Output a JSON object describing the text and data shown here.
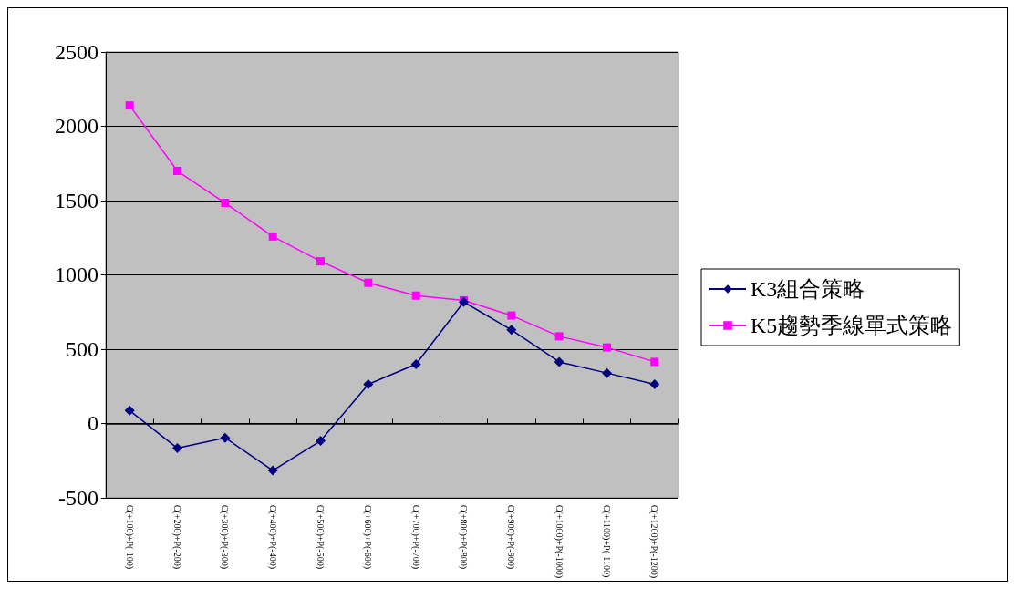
{
  "chart_data": {
    "type": "line",
    "categories": [
      "C(+100)+P(-100)",
      "C(+200)+P(-200)",
      "C(+300)+P(-300)",
      "C(+400)+P(-400)",
      "C(+500)+P(-500)",
      "C(+600)+P(-600)",
      "C(+700)+P(-700)",
      "C(+800)+P(-800)",
      "C(+900)+P(-900)",
      "C(+1000)+P(-1000)",
      "C(+1100)+P(-1100)",
      "C(+1200)+P(-1200)"
    ],
    "series": [
      {
        "name": "K3組合策略",
        "color": "#000080",
        "marker": "diamond",
        "values": [
          86,
          -167,
          -97,
          -317,
          -118,
          263,
          398,
          817,
          629,
          414,
          339,
          263
        ]
      },
      {
        "name": "K5趨勢季線單式策略",
        "color": "#ff00ff",
        "marker": "square",
        "values": [
          2140,
          1699,
          1484,
          1258,
          1091,
          946,
          860,
          828,
          726,
          586,
          511,
          414
        ]
      }
    ],
    "ylim": [
      -500,
      2500
    ],
    "yticks": [
      -500,
      0,
      500,
      1000,
      1500,
      2000,
      2500
    ],
    "grid": "y",
    "legend": "right",
    "line_style": "solid"
  }
}
